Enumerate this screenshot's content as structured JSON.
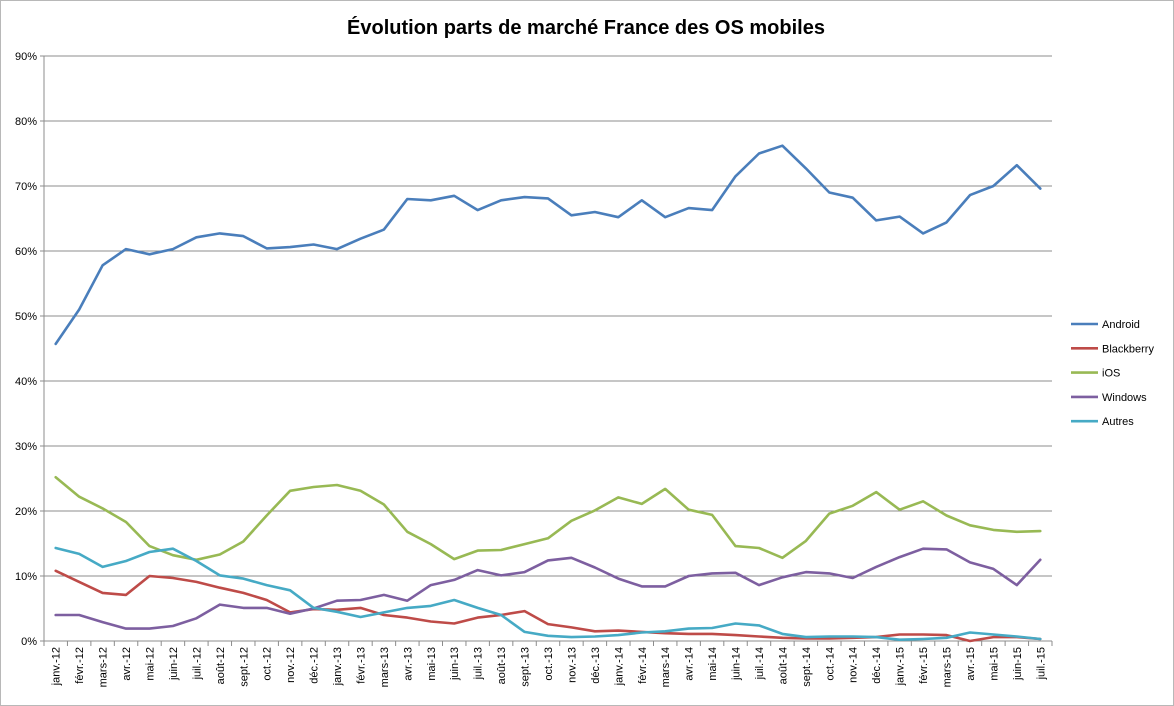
{
  "chart_data": {
    "type": "line",
    "title": "Évolution parts de marché France des OS mobiles",
    "xlabel": "",
    "ylabel": "",
    "ylim": [
      0,
      90
    ],
    "yticks": [
      "0%",
      "10%",
      "20%",
      "30%",
      "40%",
      "50%",
      "60%",
      "70%",
      "80%",
      "90%"
    ],
    "grid": true,
    "legend_position": "right",
    "categories": [
      "janv.-12",
      "févr.-12",
      "mars-12",
      "avr.-12",
      "mai-12",
      "juin-12",
      "juil.-12",
      "août-12",
      "sept.-12",
      "oct.-12",
      "nov.-12",
      "déc.-12",
      "janv.-13",
      "févr.-13",
      "mars-13",
      "avr.-13",
      "mai-13",
      "juin-13",
      "juil.-13",
      "août-13",
      "sept.-13",
      "oct.-13",
      "nov.-13",
      "déc.-13",
      "janv.-14",
      "févr.-14",
      "mars-14",
      "avr.-14",
      "mai-14",
      "juin-14",
      "juil.-14",
      "août-14",
      "sept.-14",
      "oct.-14",
      "nov.-14",
      "déc.-14",
      "janv.-15",
      "févr.-15",
      "mars-15",
      "avr.-15",
      "mai-15",
      "juin-15",
      "juil.-15"
    ],
    "series": [
      {
        "name": "Android",
        "color": "#4a7ebb",
        "values": [
          45.7,
          51.0,
          57.8,
          60.3,
          59.5,
          60.3,
          62.1,
          62.7,
          62.3,
          60.4,
          60.6,
          61.0,
          60.3,
          61.9,
          63.3,
          68.0,
          67.8,
          68.5,
          66.3,
          67.8,
          68.3,
          68.1,
          65.5,
          66.0,
          65.2,
          67.8,
          65.2,
          66.6,
          66.3,
          71.5,
          75.0,
          76.2,
          72.7,
          69.0,
          68.2,
          64.7,
          65.3,
          62.7,
          64.4,
          68.6,
          70.0,
          73.2,
          69.6
        ]
      },
      {
        "name": "Blackberry",
        "color": "#be4b48",
        "values": [
          10.8,
          9.1,
          7.4,
          7.1,
          10.0,
          9.7,
          9.1,
          8.2,
          7.4,
          6.3,
          4.4,
          4.9,
          4.8,
          5.1,
          4.0,
          3.6,
          3.0,
          2.7,
          3.6,
          4.0,
          4.6,
          2.6,
          2.1,
          1.5,
          1.6,
          1.4,
          1.2,
          1.1,
          1.1,
          0.9,
          0.7,
          0.5,
          0.4,
          0.4,
          0.5,
          0.6,
          1.0,
          1.0,
          0.9,
          0.0,
          0.6,
          0.6,
          0.3
        ]
      },
      {
        "name": "iOS",
        "color": "#98b954",
        "values": [
          25.2,
          22.2,
          20.4,
          18.3,
          14.6,
          13.2,
          12.5,
          13.3,
          15.3,
          19.3,
          23.1,
          23.7,
          24.0,
          23.1,
          21.0,
          16.8,
          14.9,
          12.6,
          13.9,
          14.0,
          14.9,
          15.8,
          18.5,
          20.1,
          22.1,
          21.1,
          23.4,
          20.2,
          19.4,
          14.6,
          14.3,
          12.8,
          15.4,
          19.6,
          20.8,
          22.9,
          20.2,
          21.5,
          19.3,
          17.8,
          17.1,
          16.8,
          16.9
        ]
      },
      {
        "name": "Windows",
        "color": "#7d5fa0",
        "values": [
          4.0,
          4.0,
          2.9,
          1.9,
          1.9,
          2.3,
          3.5,
          5.6,
          5.1,
          5.1,
          4.2,
          5.0,
          6.2,
          6.3,
          7.1,
          6.2,
          8.6,
          9.4,
          10.9,
          10.1,
          10.6,
          12.4,
          12.8,
          11.3,
          9.6,
          8.4,
          8.4,
          10.0,
          10.4,
          10.5,
          8.6,
          9.8,
          10.6,
          10.4,
          9.7,
          11.4,
          12.9,
          14.2,
          14.1,
          12.1,
          11.1,
          8.6,
          12.5
        ]
      },
      {
        "name": "Autres",
        "color": "#46aac5",
        "values": [
          14.3,
          13.4,
          11.4,
          12.3,
          13.7,
          14.2,
          12.3,
          10.1,
          9.6,
          8.6,
          7.8,
          5.1,
          4.5,
          3.7,
          4.4,
          5.1,
          5.4,
          6.3,
          5.1,
          4.0,
          1.4,
          0.8,
          0.6,
          0.7,
          0.9,
          1.3,
          1.5,
          1.9,
          2.0,
          2.7,
          2.4,
          1.1,
          0.6,
          0.7,
          0.7,
          0.6,
          0.2,
          0.3,
          0.5,
          1.3,
          1.0,
          0.7,
          0.3
        ]
      }
    ]
  }
}
